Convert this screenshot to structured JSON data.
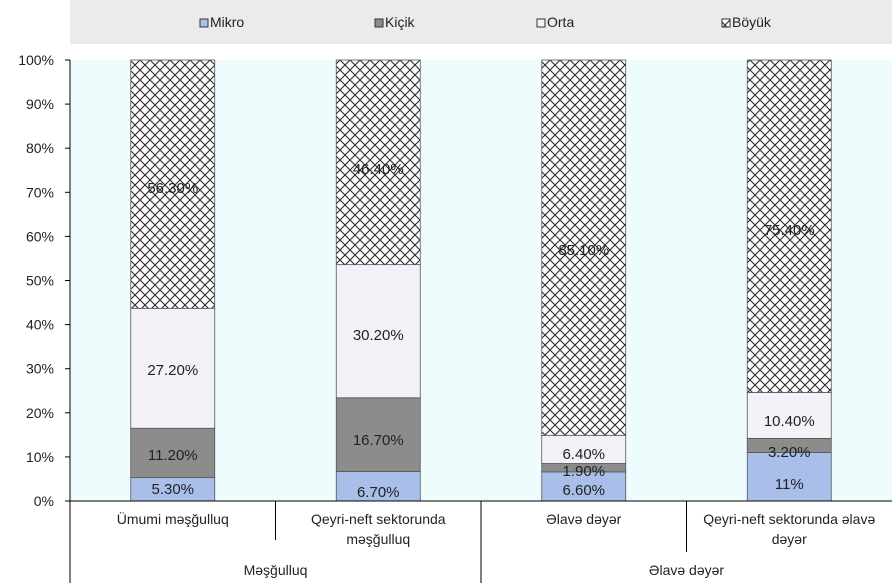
{
  "chart_data": {
    "type": "bar",
    "stacked": true,
    "percent_stacked": true,
    "categories": [
      "Ümumi məşğulluq",
      [
        "Qeyri-neft sektorunda",
        "məşğulluq"
      ],
      "Əlavə dəyər",
      [
        "Qeyri-neft sektorunda əlavə",
        "dəyər"
      ]
    ],
    "groups": [
      {
        "label": "Məşğulluq",
        "span": [
          0,
          1
        ]
      },
      {
        "label": "Əlavə dəyər",
        "span": [
          2,
          3
        ]
      }
    ],
    "series": [
      {
        "name": "Mikro",
        "values": [
          5.3,
          6.7,
          6.6,
          11
        ],
        "labels": [
          "5.30%",
          "6.70%",
          "6.60%",
          "11%"
        ]
      },
      {
        "name": "Kiçik",
        "values": [
          11.2,
          16.7,
          1.9,
          3.2
        ],
        "labels": [
          "11.20%",
          "16.70%",
          "1.90%",
          "3.20%"
        ]
      },
      {
        "name": "Orta",
        "values": [
          27.2,
          30.2,
          6.4,
          10.4
        ],
        "labels": [
          "27.20%",
          "30.20%",
          "6.40%",
          "10.40%"
        ]
      },
      {
        "name": "Böyük",
        "values": [
          56.3,
          46.4,
          85.1,
          75.4
        ],
        "labels": [
          "56.30%",
          "46.40%",
          "85.10%",
          "75.40%"
        ]
      }
    ],
    "yticks": [
      "0%",
      "10%",
      "20%",
      "30%",
      "40%",
      "50%",
      "60%",
      "70%",
      "80%",
      "90%",
      "100%"
    ],
    "ylim": [
      0,
      100
    ],
    "legend": "top",
    "colors": {
      "mikro": "#a9bfea",
      "kicik": "#8c8c8c",
      "orta": "#f2f2f8",
      "boyuk_pattern": "#2b2b2b",
      "plot_bg": "#eefcfd",
      "legend_bg": "#ebebeb"
    }
  }
}
